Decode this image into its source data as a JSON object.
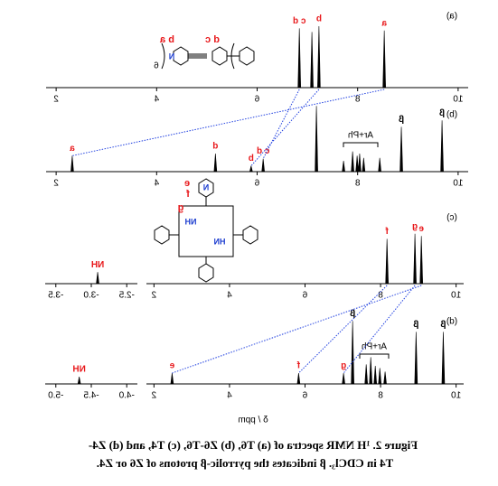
{
  "chart_data": [
    {
      "type": "spectrum",
      "label": "(a)",
      "xlim": [
        1.8,
        10.2
      ],
      "xticks": [
        10,
        8,
        6,
        4,
        2
      ],
      "ylim": [
        0,
        100
      ],
      "peaks": {
        "x": [
          6.84,
          7.09,
          7.23,
          8.53
        ],
        "values": [
          82,
          77,
          85,
          79
        ],
        "labels": [
          "c d",
          null,
          "b",
          "a"
        ],
        "label_colors": [
          "#e8191c",
          null,
          "#e8191c",
          "#e8191c"
        ]
      }
    },
    {
      "type": "spectrum",
      "label": "(b)",
      "xlim": [
        1.8,
        10.2
      ],
      "xticks": [
        10,
        8,
        6,
        4,
        2
      ],
      "ylim": [
        0,
        100
      ],
      "annotation": "Ar+Ph",
      "peaks": {
        "x": [
          2.32,
          5.17,
          5.88,
          6.12,
          7.18,
          7.72,
          7.9,
          7.99,
          8.04,
          8.12,
          8.44,
          8.87,
          9.68
        ],
        "values": [
          22,
          25,
          8,
          18,
          91,
          15,
          28,
          22,
          25,
          19,
          19,
          62,
          71
        ],
        "labels": [
          "a",
          "d",
          "b",
          "c d",
          null,
          null,
          null,
          null,
          null,
          null,
          null,
          "β",
          "β"
        ],
        "label_colors": [
          "#e8191c",
          "#e8191c",
          "#e8191c",
          "#e8191c",
          null,
          null,
          null,
          null,
          null,
          null,
          null,
          "#000000",
          "#000000"
        ]
      }
    },
    {
      "type": "spectrum",
      "label": "(c)",
      "xlim": [
        1.8,
        10.2
      ],
      "xticks": [
        10,
        8,
        6,
        4,
        2
      ],
      "ylim": [
        0,
        100
      ],
      "peaks": {
        "x": [
          8.17,
          8.91,
          9.08
        ],
        "values": [
          62,
          69,
          66
        ],
        "labels": [
          "f",
          "g",
          "e"
        ],
        "label_colors": [
          "#e8191c",
          "#e8191c",
          "#e8191c"
        ]
      },
      "inset": {
        "xlim": [
          -3.65,
          -2.35
        ],
        "xticks": [
          -3.5,
          {
            "value": -3,
            "label": "-3.0"
          },
          -2.5
        ],
        "peaks": {
          "x": [
            -2.91
          ],
          "values": [
            16
          ],
          "labels": [
            "NH"
          ],
          "label_colors": [
            "#e8191c"
          ]
        }
      }
    },
    {
      "type": "spectrum",
      "label": "(d)",
      "xlim": [
        1.8,
        10.2
      ],
      "xticks": [
        10,
        8,
        6,
        4,
        2
      ],
      "ylim": [
        0,
        100
      ],
      "annotation": "Ar+Ph",
      "peaks": {
        "x": [
          2.48,
          5.83,
          7.02,
          7.26,
          7.62,
          7.74,
          7.86,
          7.98,
          8.12,
          8.94,
          9.66
        ],
        "values": [
          15,
          15,
          15,
          87,
          27,
          37,
          25,
          22,
          17,
          72,
          72
        ],
        "labels": [
          "e",
          "f",
          "g",
          "β",
          null,
          null,
          null,
          null,
          null,
          "β",
          "β"
        ],
        "label_colors": [
          "#e8191c",
          "#e8191c",
          "#e8191c",
          "#000000",
          null,
          null,
          null,
          null,
          null,
          "#000000",
          "#000000"
        ]
      },
      "inset": {
        "xlim": [
          -5.15,
          -3.85
        ],
        "xticks": [
          {
            "value": -5,
            "label": "-5.0"
          },
          -4.5,
          {
            "value": -4,
            "label": "-4.0"
          }
        ],
        "peaks": {
          "x": [
            -4.67
          ],
          "values": [
            10
          ],
          "labels": [
            "NH"
          ],
          "label_colors": [
            "#e8191c"
          ]
        }
      }
    }
  ],
  "x_axis_title": "δ / ppm",
  "structure_a": {
    "labels": [
      "b a",
      "d c",
      "N",
      "6"
    ]
  },
  "structure_c": {
    "labels": [
      "e",
      "f",
      "g",
      "N",
      "NH",
      "HN"
    ]
  },
  "caption": {
    "line1": "Figure 2. ¹H NMR spectra of (a) T6, (b) Z6-T6, (c) T4, and (d) Z4-",
    "line2": "T4 in CDCl₃. β indicates the pyrrolic-β protons of Z6 or Z4."
  }
}
